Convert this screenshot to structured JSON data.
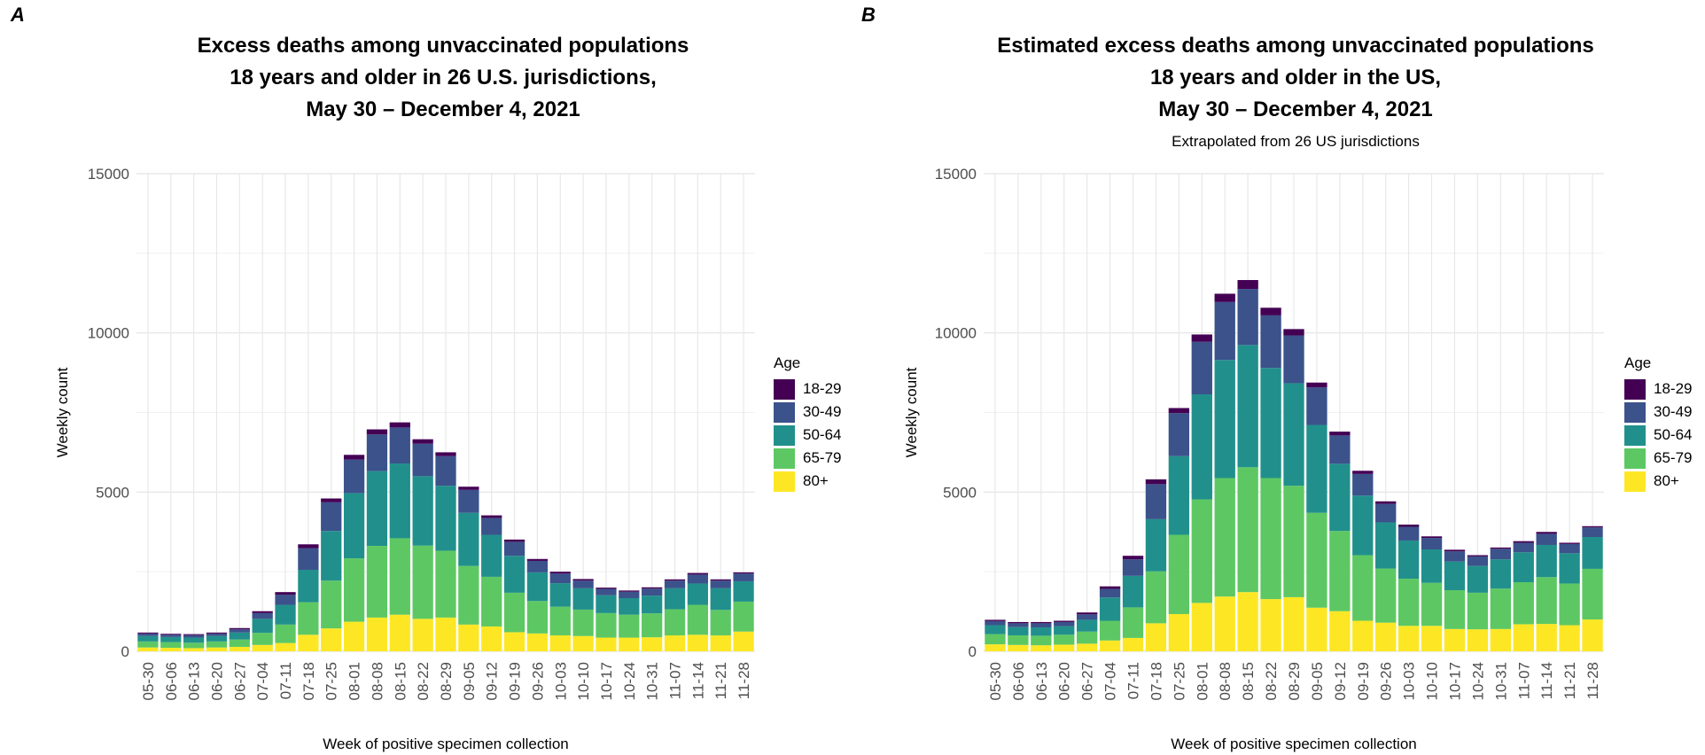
{
  "panels": [
    {
      "letter": "A",
      "title_lines": [
        "Excess deaths among unvaccinated populations",
        "18 years and older in 26 U.S. jurisdictions,",
        "May 30 – December 4, 2021"
      ],
      "subtitle": ""
    },
    {
      "letter": "B",
      "title_lines": [
        "Estimated excess deaths among unvaccinated populations",
        "18 years and older in the US,",
        "May 30 – December 4, 2021"
      ],
      "subtitle": "Extrapolated from 26 US jurisdictions"
    }
  ],
  "legend": {
    "title": "Age",
    "items": [
      {
        "label": "18-29",
        "color": "#440154"
      },
      {
        "label": "30-49",
        "color": "#3B528B"
      },
      {
        "label": "50-64",
        "color": "#21908C"
      },
      {
        "label": "65-79",
        "color": "#5DC863"
      },
      {
        "label": "80+",
        "color": "#FDE725"
      }
    ]
  },
  "chart_data": [
    {
      "type": "bar",
      "stacked": true,
      "title": "Excess deaths among unvaccinated populations 18 years and older in 26 U.S. jurisdictions, May 30 – December 4, 2021",
      "xlabel": "Week of positive specimen collection",
      "ylabel": "Weekly count",
      "ylim": [
        0,
        15000
      ],
      "yticks": [
        0,
        5000,
        10000,
        15000
      ],
      "grid": true,
      "legend_position": "right",
      "categories": [
        "05-30",
        "06-06",
        "06-13",
        "06-20",
        "06-27",
        "07-04",
        "07-11",
        "07-18",
        "07-25",
        "08-01",
        "08-08",
        "08-15",
        "08-22",
        "08-29",
        "09-05",
        "09-12",
        "09-19",
        "09-26",
        "10-03",
        "10-10",
        "10-17",
        "10-24",
        "10-31",
        "11-07",
        "11-14",
        "11-21",
        "11-28"
      ],
      "series": [
        {
          "name": "80+",
          "values": [
            120,
            110,
            100,
            120,
            140,
            200,
            260,
            520,
            720,
            930,
            1060,
            1150,
            1020,
            1060,
            840,
            780,
            600,
            560,
            500,
            480,
            430,
            430,
            440,
            500,
            520,
            500,
            620
          ]
        },
        {
          "name": "65-79",
          "values": [
            190,
            180,
            170,
            190,
            230,
            380,
            580,
            1020,
            1500,
            1990,
            2250,
            2400,
            2300,
            2100,
            1840,
            1560,
            1240,
            1020,
            900,
            830,
            770,
            720,
            750,
            820,
            940,
            800,
            940
          ]
        },
        {
          "name": "50-64",
          "values": [
            170,
            160,
            160,
            170,
            220,
            440,
            620,
            1020,
            1560,
            2050,
            2350,
            2350,
            2180,
            2040,
            1670,
            1320,
            1160,
            900,
            740,
            670,
            560,
            520,
            560,
            660,
            670,
            680,
            640
          ]
        },
        {
          "name": "30-49",
          "values": [
            80,
            70,
            80,
            80,
            100,
            180,
            320,
            680,
            900,
            1050,
            1150,
            1130,
            1020,
            930,
            720,
            530,
            440,
            360,
            300,
            240,
            200,
            200,
            220,
            240,
            280,
            240,
            240
          ]
        },
        {
          "name": "18-29",
          "values": [
            30,
            30,
            30,
            30,
            40,
            60,
            80,
            120,
            120,
            150,
            160,
            160,
            140,
            120,
            100,
            80,
            70,
            60,
            60,
            50,
            40,
            40,
            40,
            40,
            50,
            40,
            40
          ]
        }
      ]
    },
    {
      "type": "bar",
      "stacked": true,
      "title": "Estimated excess deaths among unvaccinated populations 18 years and older in the US, May 30 – December 4, 2021",
      "subtitle": "Extrapolated from 26 US jurisdictions",
      "xlabel": "Week of positive specimen collection",
      "ylabel": "Weekly count",
      "ylim": [
        0,
        15000
      ],
      "yticks": [
        0,
        5000,
        10000,
        15000
      ],
      "grid": true,
      "legend_position": "right",
      "categories": [
        "05-30",
        "06-06",
        "06-13",
        "06-20",
        "06-27",
        "07-04",
        "07-11",
        "07-18",
        "07-25",
        "08-01",
        "08-08",
        "08-15",
        "08-22",
        "08-29",
        "09-05",
        "09-12",
        "09-19",
        "09-26",
        "10-03",
        "10-10",
        "10-17",
        "10-24",
        "10-31",
        "11-07",
        "11-14",
        "11-21",
        "11-28"
      ],
      "series": [
        {
          "name": "80+",
          "values": [
            220,
            200,
            190,
            210,
            240,
            340,
            420,
            880,
            1170,
            1520,
            1720,
            1860,
            1640,
            1700,
            1370,
            1260,
            960,
            900,
            800,
            800,
            700,
            690,
            700,
            850,
            860,
            820,
            1000
          ]
        },
        {
          "name": "65-79",
          "values": [
            320,
            300,
            300,
            310,
            380,
            620,
            960,
            1630,
            2490,
            3250,
            3720,
            3920,
            3800,
            3500,
            2980,
            2520,
            2060,
            1700,
            1480,
            1350,
            1220,
            1150,
            1270,
            1320,
            1470,
            1310,
            1590
          ]
        },
        {
          "name": "50-64",
          "values": [
            280,
            260,
            260,
            270,
            370,
            730,
            990,
            1640,
            2470,
            3300,
            3710,
            3840,
            3460,
            3220,
            2760,
            2110,
            1870,
            1450,
            1200,
            1050,
            900,
            840,
            920,
            940,
            1010,
            950,
            1000
          ]
        },
        {
          "name": "30-49",
          "values": [
            130,
            120,
            130,
            130,
            170,
            270,
            520,
            1100,
            1350,
            1650,
            1820,
            1760,
            1650,
            1500,
            1180,
            890,
            680,
            580,
            430,
            360,
            320,
            300,
            330,
            300,
            350,
            290,
            300
          ]
        },
        {
          "name": "18-29",
          "values": [
            40,
            40,
            40,
            40,
            60,
            80,
            110,
            150,
            160,
            230,
            260,
            280,
            240,
            200,
            150,
            120,
            100,
            80,
            70,
            50,
            50,
            40,
            40,
            50,
            60,
            40,
            40
          ]
        }
      ]
    }
  ]
}
